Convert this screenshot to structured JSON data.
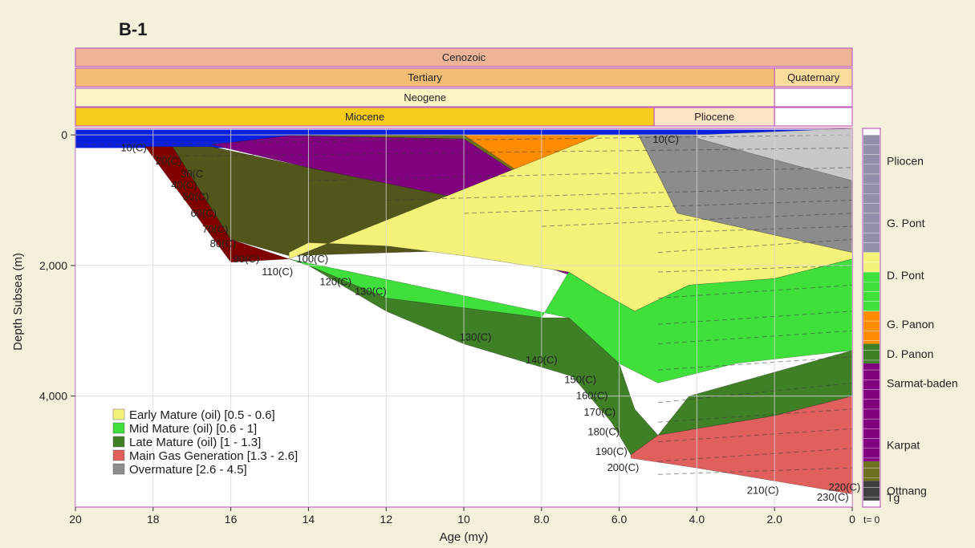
{
  "title": "B-1",
  "timescale": [
    {
      "row": 0,
      "items": [
        {
          "label": "Cenozoic",
          "from": 20,
          "to": 0,
          "color": "#eeb496"
        }
      ]
    },
    {
      "row": 1,
      "items": [
        {
          "label": "Tertiary",
          "from": 20,
          "to": 2,
          "color": "#f3be74"
        },
        {
          "label": "Quaternary",
          "from": 2,
          "to": 0,
          "color": "#fbdc9c"
        }
      ]
    },
    {
      "row": 2,
      "items": [
        {
          "label": "Neogene",
          "from": 20,
          "to": 2,
          "color": "#fdf5c4"
        },
        {
          "label": "",
          "from": 2,
          "to": 0,
          "color": "#ffffff"
        }
      ]
    },
    {
      "row": 3,
      "items": [
        {
          "label": "Miocene",
          "from": 20,
          "to": 5.1,
          "color": "#f8cc1a"
        },
        {
          "label": "Pliocene",
          "from": 5.1,
          "to": 2,
          "color": "#fce4c4"
        },
        {
          "label": "",
          "from": 2,
          "to": 0,
          "color": "#ffffff"
        }
      ]
    }
  ],
  "chart_data": {
    "type": "area",
    "title": "B-1",
    "xlabel": "Age (my)",
    "ylabel": "Depth Subsea (m)",
    "xlim": [
      20,
      0
    ],
    "ylim": [
      5700,
      -100
    ],
    "x_ticks": [
      20,
      18,
      16,
      14,
      12,
      10,
      8,
      6,
      4,
      2,
      0
    ],
    "x_tick_labels": [
      "20",
      "18",
      "16",
      "14",
      "12",
      "10",
      "8.0",
      "6.0",
      "4.0",
      "2.0",
      "0"
    ],
    "y_ticks": [
      0,
      2000,
      4000
    ],
    "y_tick_labels": [
      "0",
      "2,000",
      "4,000"
    ],
    "grid": true,
    "legend_position": "bottom-left",
    "end_label": "t= 0",
    "series": [
      {
        "name": "Early Mature (oil) [0.5 - 0.6]",
        "color": "#f5f27a"
      },
      {
        "name": "Mid Mature (oil) [0.6 - 1]",
        "color": "#3fe03c"
      },
      {
        "name": "Late Mature (oil) [1 - 1.3]",
        "color": "#3f7f26"
      },
      {
        "name": "Main Gas Generation [1.3 - 2.6]",
        "color": "#e0605d"
      },
      {
        "name": "Overmature [2.6 - 4.5]",
        "color": "#8c8c8c"
      }
    ],
    "zones": [
      {
        "color": "#800000",
        "points": [
          [
            18.5,
            180
          ],
          [
            17.5,
            180
          ],
          [
            16,
            1600
          ],
          [
            14.5,
            1900
          ],
          [
            16,
            1950
          ],
          [
            18.2,
            180
          ]
        ]
      },
      {
        "color": "#52561a",
        "points": [
          [
            17.5,
            180
          ],
          [
            16.5,
            180
          ],
          [
            14,
            500
          ],
          [
            9,
            1100
          ],
          [
            9,
            1750
          ],
          [
            14.5,
            1850
          ],
          [
            16,
            1600
          ]
        ]
      },
      {
        "color": "#800080",
        "points": [
          [
            16.5,
            150
          ],
          [
            14.5,
            10
          ],
          [
            10,
            60
          ],
          [
            6,
            1600
          ],
          [
            5.6,
            2300
          ],
          [
            6.5,
            2300
          ],
          [
            9,
            1800
          ],
          [
            9,
            1100
          ],
          [
            14,
            500
          ]
        ]
      },
      {
        "color": "#6f7020",
        "points": [
          [
            14.5,
            10
          ],
          [
            10,
            0
          ],
          [
            8.5,
            20
          ],
          [
            6,
            1450
          ],
          [
            6,
            1600
          ],
          [
            10,
            60
          ]
        ]
      },
      {
        "color": "#ff8c00",
        "points": [
          [
            10,
            0
          ],
          [
            6.5,
            0
          ],
          [
            4.2,
            1900
          ],
          [
            5,
            2000
          ],
          [
            5.6,
            2300
          ],
          [
            6,
            1600
          ]
        ]
      },
      {
        "color": "#f5f27a",
        "points": [
          [
            6.5,
            0
          ],
          [
            5.5,
            0
          ],
          [
            4.5,
            1200
          ],
          [
            0,
            1800
          ],
          [
            0,
            1900
          ],
          [
            2,
            2200
          ],
          [
            4.2,
            2300
          ],
          [
            5.6,
            2700
          ],
          [
            6.5,
            2400
          ],
          [
            7.3,
            2100
          ],
          [
            10,
            1850
          ],
          [
            12,
            1700
          ],
          [
            14,
            1650
          ],
          [
            14.5,
            1800
          ],
          [
            14.5,
            1900
          ]
        ]
      },
      {
        "color": "#8c8c8c",
        "points": [
          [
            5.5,
            0
          ],
          [
            4,
            0
          ],
          [
            0,
            100
          ],
          [
            0,
            1800
          ],
          [
            4.5,
            1200
          ]
        ]
      },
      {
        "color": "#c8c8c8",
        "points": [
          [
            4,
            0
          ],
          [
            0,
            -100
          ],
          [
            0,
            700
          ],
          [
            2.5,
            300
          ],
          [
            4,
            50
          ]
        ]
      },
      {
        "color": "#3fe03c",
        "points": [
          [
            14.5,
            1900
          ],
          [
            14,
            2000
          ],
          [
            12,
            2500
          ],
          [
            8,
            2800
          ],
          [
            7.3,
            2100
          ],
          [
            6.5,
            2400
          ],
          [
            5.6,
            2700
          ],
          [
            4.2,
            2300
          ],
          [
            2,
            2200
          ],
          [
            0,
            1900
          ],
          [
            0,
            3300
          ],
          [
            3,
            3500
          ],
          [
            5,
            3800
          ],
          [
            6,
            3500
          ],
          [
            7.3,
            2800
          ]
        ]
      },
      {
        "color": "#3f7f26",
        "points": [
          [
            14,
            2000
          ],
          [
            12,
            2500
          ],
          [
            8,
            2800
          ],
          [
            7.3,
            2800
          ],
          [
            6,
            3500
          ],
          [
            5.6,
            4200
          ],
          [
            5,
            4600
          ],
          [
            4.2,
            4000
          ],
          [
            0,
            3300
          ],
          [
            0,
            4000
          ],
          [
            2,
            4300
          ],
          [
            4,
            4500
          ],
          [
            5,
            4600
          ],
          [
            5.7,
            4900
          ],
          [
            6.2,
            4400
          ],
          [
            7.2,
            3700
          ],
          [
            10,
            3200
          ],
          [
            12,
            2700
          ]
        ]
      },
      {
        "color": "#e0605d",
        "points": [
          [
            5.7,
            4900
          ],
          [
            5,
            4600
          ],
          [
            4,
            4500
          ],
          [
            2,
            4300
          ],
          [
            0,
            4000
          ],
          [
            0,
            5500
          ],
          [
            2,
            5300
          ],
          [
            4,
            5100
          ],
          [
            5.7,
            4950
          ]
        ]
      }
    ],
    "dashed_lines": [
      [
        [
          20,
          150
        ],
        [
          0,
          0
        ]
      ],
      [
        [
          18,
          330
        ],
        [
          0,
          200
        ]
      ],
      [
        [
          14,
          700
        ],
        [
          0,
          500
        ]
      ],
      [
        [
          12,
          1000
        ],
        [
          0,
          800
        ]
      ],
      [
        [
          10,
          1200
        ],
        [
          0,
          1000
        ]
      ],
      [
        [
          8,
          1400
        ],
        [
          0,
          1200
        ]
      ],
      [
        [
          5,
          1500
        ],
        [
          0,
          1400
        ]
      ],
      [
        [
          5,
          1800
        ],
        [
          0,
          1600
        ]
      ],
      [
        [
          5,
          2100
        ],
        [
          0,
          2000
        ]
      ],
      [
        [
          5,
          2500
        ],
        [
          0,
          2300
        ]
      ],
      [
        [
          5,
          2900
        ],
        [
          0,
          2700
        ]
      ],
      [
        [
          5,
          3200
        ],
        [
          0,
          3000
        ]
      ],
      [
        [
          5,
          3600
        ],
        [
          0,
          3400
        ]
      ],
      [
        [
          5,
          4100
        ],
        [
          0,
          3800
        ]
      ],
      [
        [
          5,
          4400
        ],
        [
          0,
          4200
        ]
      ],
      [
        [
          5,
          4700
        ],
        [
          0,
          4500
        ]
      ],
      [
        [
          5,
          5000
        ],
        [
          0,
          4800
        ]
      ],
      [
        [
          5,
          5200
        ],
        [
          0,
          5100
        ]
      ]
    ],
    "temperature_labels": [
      {
        "text": "10(C)",
        "age": 18.5,
        "depth": 250
      },
      {
        "text": "20(C)",
        "age": 17.6,
        "depth": 450
      },
      {
        "text": "30(C",
        "age": 17.0,
        "depth": 650
      },
      {
        "text": "40(C)",
        "age": 17.2,
        "depth": 820
      },
      {
        "text": "50(C)",
        "age": 16.9,
        "depth": 1000
      },
      {
        "text": "60(C)",
        "age": 16.7,
        "depth": 1250
      },
      {
        "text": "70(C)",
        "age": 16.4,
        "depth": 1500
      },
      {
        "text": "80(C)",
        "age": 16.2,
        "depth": 1720
      },
      {
        "text": "90(C)",
        "age": 15.6,
        "depth": 1950
      },
      {
        "text": "110(C)",
        "age": 14.8,
        "depth": 2150
      },
      {
        "text": "120(C)",
        "age": 13.3,
        "depth": 2300
      },
      {
        "text": "130(C)",
        "age": 12.4,
        "depth": 2450
      },
      {
        "text": "100(C)",
        "age": 13.9,
        "depth": 1950
      },
      {
        "text": "130(C)",
        "age": 9.7,
        "depth": 3150
      },
      {
        "text": "140(C)",
        "age": 8.0,
        "depth": 3500
      },
      {
        "text": "150(C)",
        "age": 7.0,
        "depth": 3800
      },
      {
        "text": "160(C)",
        "age": 6.7,
        "depth": 4050
      },
      {
        "text": "170(C)",
        "age": 6.5,
        "depth": 4300
      },
      {
        "text": "180(C)",
        "age": 6.4,
        "depth": 4600
      },
      {
        "text": "190(C)",
        "age": 6.2,
        "depth": 4900
      },
      {
        "text": "200(C)",
        "age": 5.9,
        "depth": 5150
      },
      {
        "text": "210(C)",
        "age": 2.3,
        "depth": 5500
      },
      {
        "text": "230(C)",
        "age": 0.5,
        "depth": 5600
      },
      {
        "text": "220(C)",
        "age": 0.2,
        "depth": 5450
      },
      {
        "text": "10(C)",
        "age": 4.8,
        "depth": 120
      }
    ],
    "formations": [
      {
        "name": "Pliocen",
        "depth": 400
      },
      {
        "name": "G. Pont",
        "depth": 1350
      },
      {
        "name": "D. Pont",
        "depth": 2150
      },
      {
        "name": "G. Panon",
        "depth": 2900
      },
      {
        "name": "D. Panon",
        "depth": 3350
      },
      {
        "name": "Sarmat-baden",
        "depth": 3800
      },
      {
        "name": "Karpat",
        "depth": 4750
      },
      {
        "name": "Ottnang",
        "depth": 5450
      },
      {
        "name": "Tg",
        "depth": 5550
      }
    ],
    "strip_colors": [
      {
        "from": 0,
        "to": 1800,
        "color": "#9090a8"
      },
      {
        "from": 1800,
        "to": 2100,
        "color": "#f5f27a"
      },
      {
        "from": 2100,
        "to": 2700,
        "color": "#3fe03c"
      },
      {
        "from": 2700,
        "to": 3200,
        "color": "#ff8c00"
      },
      {
        "from": 3200,
        "to": 3500,
        "color": "#3f7f26"
      },
      {
        "from": 3500,
        "to": 5000,
        "color": "#800080"
      },
      {
        "from": 5000,
        "to": 5300,
        "color": "#6f7020"
      },
      {
        "from": 5300,
        "to": 5600,
        "color": "#404040"
      }
    ]
  }
}
